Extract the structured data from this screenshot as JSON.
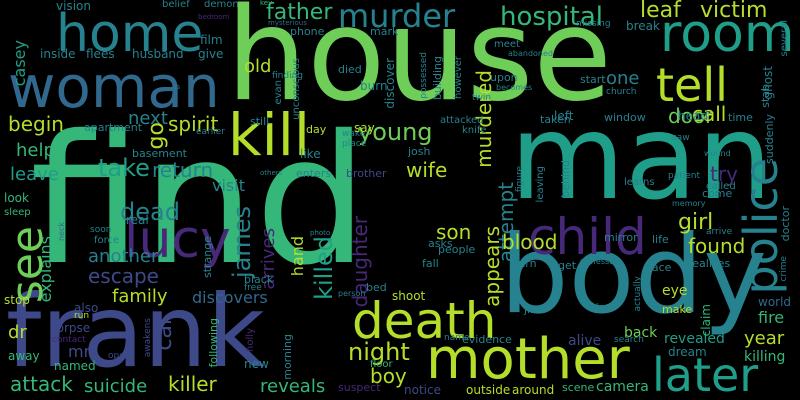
{
  "palette": {
    "background": "#000000",
    "yellow_green": "#b5de2b",
    "light_green": "#6ece58",
    "green": "#35b779",
    "teal_green": "#1f9e89",
    "teal": "#26828e",
    "blue": "#31688e",
    "indigo": "#3e4989",
    "purple": "#482878",
    "dark_purple": "#440154"
  },
  "words": {
    "house": "house",
    "find": "find",
    "man": "man",
    "body": "body",
    "frank": "frank",
    "woman": "woman",
    "home": "home",
    "mother": "mother",
    "room": "room",
    "death": "death",
    "kill": "kill",
    "child": "child",
    "police": "police",
    "tell": "tell",
    "lucy": "lucy",
    "later": "later",
    "father": "father",
    "murder": "murder",
    "hospital": "hospital",
    "leaf": "leaf",
    "victim": "victim",
    "see": "see",
    "young": "young",
    "spirit": "spirit",
    "take": "take",
    "return": "return",
    "dead": "dead",
    "james": "james",
    "killed": "killed",
    "attempt": "attempt",
    "night": "night",
    "girl": "girl",
    "blood": "blood",
    "wife": "wife",
    "daughter": "daughter",
    "son": "son",
    "door": "door",
    "call": "call",
    "try": "try",
    "car": "car",
    "killer": "killer",
    "boy": "boy",
    "attack": "attack",
    "suicide": "suicide",
    "reveals": "reveals",
    "escape": "escape",
    "another": "another",
    "family": "family",
    "discovers": "discovers",
    "begin": "begin",
    "help": "help",
    "leave": "leave",
    "next": "next",
    "go": "go",
    "old": "old",
    "one": "one",
    "murdered": "murdered",
    "appears": "appears",
    "found": "found",
    "visit": "visit",
    "arrives": "arrives",
    "hand": "hand",
    "explains": "explains",
    "casey": "casey",
    "year": "year",
    "dr": "dr",
    "mr": "mr",
    "fire": "fire",
    "world": "world",
    "killing": "killing",
    "alive": "alive",
    "back": "back",
    "revealed": "revealed",
    "dream": "dream",
    "eye": "eye",
    "make": "make",
    "claim": "claim",
    "shoot": "shoot",
    "outside": "outside",
    "around": "around",
    "scene": "scene",
    "camera": "camera",
    "notice": "notice",
    "suspect": "suspect",
    "floor": "floor",
    "new": "new",
    "morning": "morning",
    "holly": "holly",
    "following": "following",
    "awakens": "awakens",
    "corpse": "corpse",
    "contact": "contact",
    "also": "also",
    "run": "run",
    "away": "away",
    "named": "named",
    "stop": "stop",
    "look": "look",
    "sleep": "sleep",
    "neck": "neck",
    "inside": "inside",
    "flees": "flees",
    "husband": "husband",
    "give": "give",
    "vision": "vision",
    "belief": "belief",
    "demon": "demon",
    "film": "film",
    "phone": "phone",
    "mark": "mark",
    "finding": "finding",
    "evan": "evan",
    "unconscious": "unconscious",
    "died": "died",
    "burn": "burn",
    "discover": "discover",
    "possessed": "possessed",
    "building": "building",
    "however": "however",
    "upon": "upon",
    "twin": "twin",
    "becomes": "becomes",
    "meet": "meet",
    "missing": "missing",
    "abandoned": "abandoned",
    "start": "start",
    "break": "break",
    "church": "church",
    "left": "left",
    "head": "head",
    "window": "window",
    "taken": "taken",
    "attacked": "attacked",
    "knife": "knife",
    "ghost": "ghost",
    "stab": "stab",
    "several": "several",
    "time": "time",
    "suddenly": "suddenly",
    "wound": "wound",
    "called": "called",
    "learns": "learns",
    "saw": "saw",
    "come": "come",
    "patient": "patient",
    "memory": "memory",
    "doctor": "doctor",
    "crime": "crime",
    "arrive": "arrive",
    "life": "life",
    "mirror": "mirror",
    "figure": "figure",
    "leaving": "leaving",
    "behind": "behind",
    "turn": "turn",
    "professor": "professor",
    "realizes": "realizes",
    "face": "face",
    "get": "get",
    "actually": "actually",
    "search": "search",
    "evidence": "evidence",
    "name": "name",
    "jin": "jin",
    "lock": "lock",
    "people": "people",
    "fall": "fall",
    "asks": "asks",
    "strange": "strange",
    "photo": "photo",
    "person": "person",
    "bed": "bed",
    "black": "black",
    "free": "free",
    "real": "real",
    "force": "force",
    "soon": "soon",
    "basement": "basement",
    "apartment": "apartment",
    "earlier": "earlier",
    "still": "still",
    "day": "day",
    "wake": "wake",
    "place": "place",
    "say": "say",
    "like": "like",
    "josh": "josh",
    "enters": "enters",
    "brother": "brother",
    "others": "others",
    "us": "us",
    "mysterious": "mysterious",
    "bedroom": "bedroom",
    "key": "key",
    "open": "open"
  }
}
